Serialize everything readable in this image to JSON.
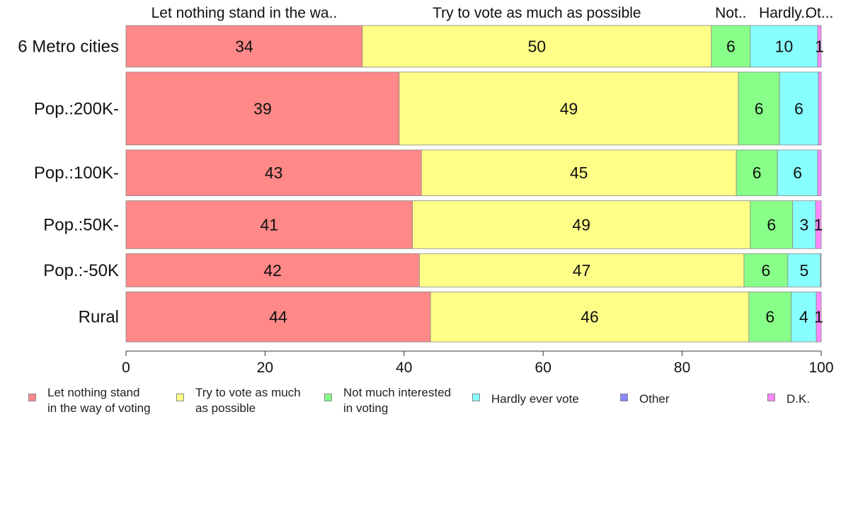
{
  "chart_data": {
    "type": "bar",
    "orientation": "horizontal",
    "stacked": true,
    "categories": [
      "6 Metro cities",
      "Pop.:200K-",
      "Pop.:100K-",
      "Pop.:50K-",
      "Pop.:-50K",
      "Rural"
    ],
    "series": [
      {
        "name": "Let nothing stand in the way of voting",
        "color": "#ff8888",
        "values": [
          34,
          39.3,
          42.5,
          41.2,
          42.2,
          43.8
        ],
        "labels": [
          "34",
          "39",
          "43",
          "41",
          "42",
          "44"
        ]
      },
      {
        "name": "Try to vote as much as possible",
        "color": "#ffff88",
        "values": [
          50.2,
          48.8,
          45.3,
          48.6,
          46.7,
          45.8
        ],
        "labels": [
          "50",
          "49",
          "45",
          "49",
          "47",
          "46"
        ]
      },
      {
        "name": "Not much interested in voting",
        "color": "#88ff88",
        "values": [
          5.6,
          5.9,
          5.9,
          6.1,
          6.3,
          6.1
        ],
        "labels": [
          "6",
          "6",
          "6",
          "6",
          "6",
          "6"
        ]
      },
      {
        "name": "Hardly ever vote",
        "color": "#88ffff",
        "values": [
          9.7,
          5.6,
          5.8,
          3.3,
          4.7,
          3.6
        ],
        "labels": [
          "10",
          "6",
          "6",
          "3",
          "5",
          "4"
        ]
      },
      {
        "name": "Other",
        "color": "#8888ff",
        "values": [
          0,
          0,
          0,
          0,
          0,
          0
        ],
        "labels": [
          "",
          "",
          "",
          "",
          "",
          ""
        ]
      },
      {
        "name": "D.K.",
        "color": "#ff88ff",
        "values": [
          0.5,
          0.4,
          0.5,
          0.8,
          0.1,
          0.7
        ],
        "labels": [
          "1",
          "",
          "",
          "1",
          "",
          "1"
        ]
      }
    ],
    "top_labels": [
      "Let nothing stand in the wa..",
      "Try to vote as much as possible",
      "Not..",
      "Hardly..",
      "Ot..."
    ],
    "xlim": [
      0,
      100
    ],
    "xticks": [
      "0",
      "20",
      "40",
      "60",
      "80",
      "100"
    ],
    "bar_weights": [
      1.0,
      1.75,
      1.1,
      1.15,
      0.8,
      1.2
    ],
    "legend_position": "bottom",
    "title": "",
    "xlabel": "",
    "ylabel": ""
  },
  "legend": [
    {
      "label": "Let nothing stand\nin the way of voting",
      "color": "#ff8888"
    },
    {
      "label": "Try to vote as much\nas possible",
      "color": "#ffff88"
    },
    {
      "label": "Not much interested\nin voting",
      "color": "#88ff88"
    },
    {
      "label": "Hardly ever vote",
      "color": "#88ffff"
    },
    {
      "label": "Other",
      "color": "#8888ff"
    },
    {
      "label": "D.K.",
      "color": "#ff88ff"
    }
  ]
}
